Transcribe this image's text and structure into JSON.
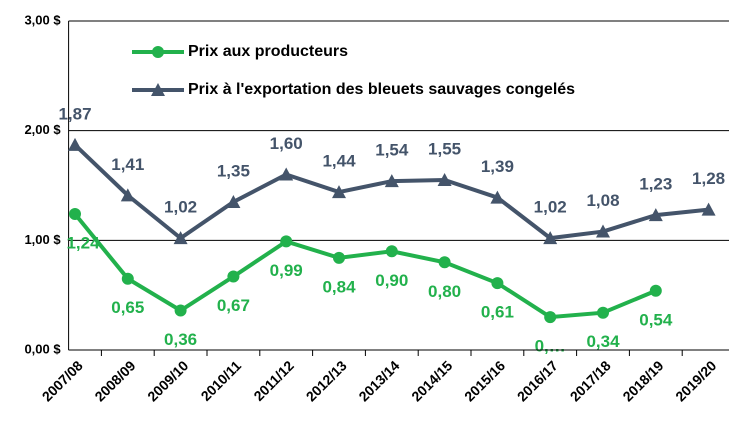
{
  "chart_data": {
    "type": "line",
    "categories": [
      "2007/08",
      "2008/09",
      "2009/10",
      "2010/11",
      "2011/12",
      "2012/13",
      "2013/14",
      "2014/15",
      "2015/16",
      "2016/17",
      "2017/18",
      "2018/19",
      "2019/20"
    ],
    "series": [
      {
        "name": "Prix aux producteurs",
        "color": "#22b14c",
        "values": [
          1.24,
          0.65,
          0.36,
          0.67,
          0.99,
          0.84,
          0.9,
          0.8,
          0.61,
          0.3,
          0.34,
          0.54,
          null
        ],
        "value_labels": [
          "1,24",
          "0,65",
          "0,36",
          "0,67",
          "0,99",
          "0,84",
          "0,90",
          "0,80",
          "0,61",
          "0,…",
          "0,34",
          "0,54",
          null
        ]
      },
      {
        "name": "Prix à l'exportation des bleuets sauvages congelés",
        "color": "#44546a",
        "values": [
          1.87,
          1.41,
          1.02,
          1.35,
          1.6,
          1.44,
          1.54,
          1.55,
          1.39,
          1.02,
          1.08,
          1.23,
          1.28
        ],
        "value_labels": [
          "1,87",
          "1,41",
          "1,02",
          "1,35",
          "1,60",
          "1,44",
          "1,54",
          "1,55",
          "1,39",
          "1,02",
          "1,08",
          "1,23",
          "1,28"
        ]
      }
    ],
    "ylim": [
      0,
      3
    ],
    "yticks": [
      {
        "value": 0,
        "label": "0,00 $"
      },
      {
        "value": 1,
        "label": "1,00 $"
      },
      {
        "value": 2,
        "label": "2,00 $"
      },
      {
        "value": 3,
        "label": "3,00 $"
      }
    ],
    "grid": true,
    "legend": "top-left"
  }
}
